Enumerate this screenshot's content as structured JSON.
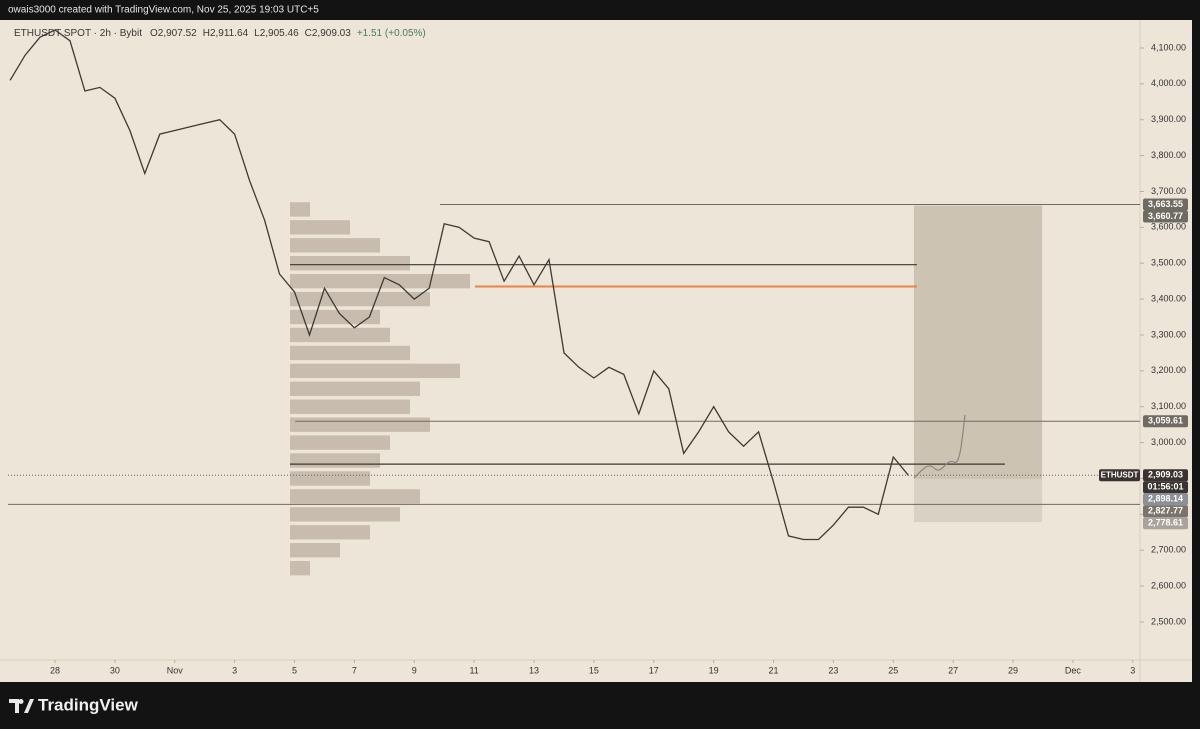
{
  "header": {
    "credit": "owais3000 created with TradingView.com, Nov 25, 2025 19:03 UTC+5"
  },
  "legend": {
    "symbol": "ETHUSDT SPOT · 2h · Bybit",
    "ohlc": [
      {
        "label": "O",
        "value": "2,907.52"
      },
      {
        "label": "H",
        "value": "2,911.64"
      },
      {
        "label": "L",
        "value": "2,905.46"
      },
      {
        "label": "C",
        "value": "2,909.03"
      }
    ],
    "change": "+1.51 (+0.05%)"
  },
  "chart_data": {
    "type": "line",
    "x": [
      -1.5,
      -1,
      -0.5,
      0,
      0.5,
      1,
      1.5,
      2,
      2.5,
      3,
      3.5,
      4,
      4.5,
      5,
      5.5,
      6,
      6.5,
      7,
      7.5,
      8,
      8.5,
      9,
      9.5,
      10,
      10.5,
      11,
      11.5,
      12,
      12.5,
      13,
      13.5,
      14,
      14.5,
      15,
      15.5,
      16,
      16.5,
      17,
      17.5,
      18,
      18.5,
      19,
      19.5,
      20,
      20.5,
      21,
      21.5,
      22,
      22.5,
      23,
      23.5,
      24,
      24.5,
      25,
      25.5,
      26,
      26.5,
      27,
      27.5,
      28,
      28.5
    ],
    "series": [
      {
        "name": "ETHUSDT",
        "color": "#3d3934",
        "values": [
          4010,
          4080,
          4130,
          4150,
          4120,
          3980,
          3990,
          3960,
          3870,
          3750,
          3860,
          3870,
          3880,
          3890,
          3900,
          3860,
          3730,
          3620,
          3470,
          3420,
          3300,
          3430,
          3360,
          3320,
          3350,
          3460,
          3440,
          3400,
          3430,
          3610,
          3600,
          3570,
          3560,
          3450,
          3520,
          3440,
          3510,
          3250,
          3210,
          3180,
          3210,
          3190,
          3080,
          3200,
          3150,
          2970,
          3030,
          3100,
          3030,
          2990,
          3030,
          2890,
          2740,
          2730,
          2730,
          2770,
          2820,
          2820,
          2800,
          2960,
          2909.03
        ]
      }
    ],
    "xlim": [
      -1.57,
      36.24
    ],
    "xticks": [
      {
        "value": 0,
        "label": "28"
      },
      {
        "value": 2,
        "label": "30"
      },
      {
        "value": 4,
        "label": "Nov"
      },
      {
        "value": 6,
        "label": "3"
      },
      {
        "value": 8,
        "label": "5"
      },
      {
        "value": 10,
        "label": "7"
      },
      {
        "value": 12,
        "label": "9"
      },
      {
        "value": 14,
        "label": "11"
      },
      {
        "value": 16,
        "label": "13"
      },
      {
        "value": 18,
        "label": "15"
      },
      {
        "value": 20,
        "label": "17"
      },
      {
        "value": 22,
        "label": "19"
      },
      {
        "value": 24,
        "label": "21"
      },
      {
        "value": 26,
        "label": "23"
      },
      {
        "value": 28,
        "label": "25"
      },
      {
        "value": 30,
        "label": "27"
      },
      {
        "value": 32,
        "label": "29"
      },
      {
        "value": 34,
        "label": "Dec"
      },
      {
        "value": 36,
        "label": "3"
      }
    ],
    "ylim": [
      2394,
      4178
    ],
    "yticks": [
      {
        "value": 2500,
        "label": "2,500.00"
      },
      {
        "value": 2600,
        "label": "2,600.00"
      },
      {
        "value": 2700,
        "label": "2,700.00"
      },
      {
        "value": 2800,
        "label": "2,800.00"
      },
      {
        "value": 2900,
        "label": "2,900.00"
      },
      {
        "value": 3000,
        "label": "3,000.00"
      },
      {
        "value": 3100,
        "label": "3,100.00"
      },
      {
        "value": 3200,
        "label": "3,200.00"
      },
      {
        "value": 3300,
        "label": "3,300.00"
      },
      {
        "value": 3400,
        "label": "3,400.00"
      },
      {
        "value": 3500,
        "label": "3,500.00"
      },
      {
        "value": 3600,
        "label": "3,600.00"
      },
      {
        "value": 3700,
        "label": "3,700.00"
      },
      {
        "value": 3800,
        "label": "3,800.00"
      },
      {
        "value": 3900,
        "label": "3,900.00"
      },
      {
        "value": 4000,
        "label": "4,000.00"
      },
      {
        "value": 4100,
        "label": "4,100.00"
      }
    ],
    "price_labels": [
      {
        "value": 3663.55,
        "label": "3,663.55",
        "color": "#6f6a62",
        "line": [
          12.86,
          36.24
        ]
      },
      {
        "value": 3660.77,
        "label": "3,660.77",
        "color": "#6f6a62"
      },
      {
        "value": 3059.61,
        "label": "3,059.61",
        "color": "#6f6a62",
        "line": [
          8.02,
          36.24
        ]
      },
      {
        "value": 2909.03,
        "label": "2,909.03",
        "color": "#3a3330",
        "line": [
          -1.57,
          36.24
        ],
        "dotted": true
      },
      {
        "value": 2898.14,
        "label": "2,898.14",
        "color": "#8b8f98"
      },
      {
        "value": 2827.77,
        "label": "2,827.77",
        "color": "#7b746c",
        "line": [
          -1.57,
          36.24
        ]
      },
      {
        "value": 2778.61,
        "label": "2,778.61",
        "color": "#a9a39b"
      }
    ],
    "countdown": "01:56:01",
    "levels": [
      {
        "price": 3496,
        "from": 7.85,
        "to": 28.79,
        "color": "#3a3632"
      },
      {
        "price": 3435,
        "from": 14.03,
        "to": 28.79,
        "color": "#e8834a"
      },
      {
        "price": 2940,
        "from": 7.85,
        "to": 31.73,
        "color": "#3a3632"
      }
    ],
    "position": {
      "from": 28.69,
      "to": 32.97
    },
    "volume_profile": {
      "from": 7.85,
      "color": "#b9ae9f",
      "prices": [
        3650,
        3600,
        3550,
        3500,
        3450,
        3400,
        3350,
        3300,
        3250,
        3200,
        3150,
        3100,
        3050,
        3000,
        2950,
        2900,
        2850,
        2800,
        2750,
        2700,
        2650
      ],
      "volumes": [
        20,
        60,
        90,
        120,
        180,
        140,
        90,
        100,
        120,
        170,
        130,
        120,
        140,
        100,
        90,
        80,
        130,
        110,
        80,
        50,
        20
      ]
    }
  },
  "footer": {
    "brand": "TradingView"
  }
}
